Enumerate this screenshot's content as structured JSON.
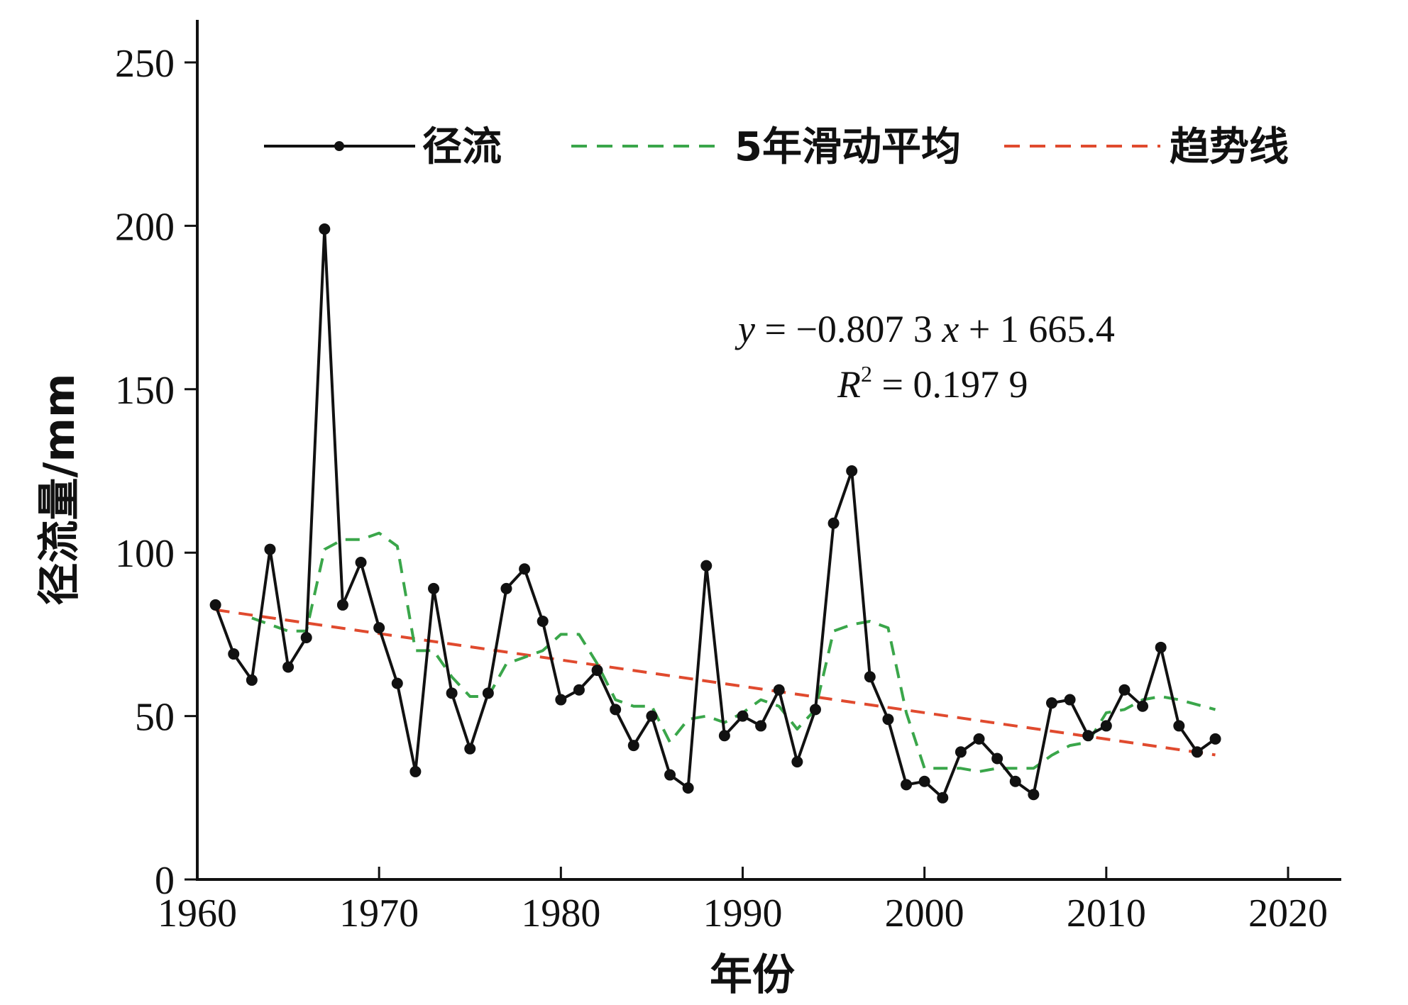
{
  "chart_data": {
    "type": "line",
    "title": "",
    "xlabel": "年份",
    "ylabel": "径流量/mm",
    "xlim": [
      1960,
      2020
    ],
    "ylim": [
      0,
      250
    ],
    "xticks": [
      1960,
      1970,
      1980,
      1990,
      2000,
      2010,
      2020
    ],
    "yticks": [
      0,
      50,
      100,
      150,
      200,
      250
    ],
    "grid": false,
    "legend_position": "top",
    "series": [
      {
        "name": "径流",
        "style": "solid-with-markers",
        "color": "#111111",
        "x": [
          1961,
          1962,
          1963,
          1964,
          1965,
          1966,
          1967,
          1968,
          1969,
          1970,
          1971,
          1972,
          1973,
          1974,
          1975,
          1976,
          1977,
          1978,
          1979,
          1980,
          1981,
          1982,
          1983,
          1984,
          1985,
          1986,
          1987,
          1988,
          1989,
          1990,
          1991,
          1992,
          1993,
          1994,
          1995,
          1996,
          1997,
          1998,
          1999,
          2000,
          2001,
          2002,
          2003,
          2004,
          2005,
          2006,
          2007,
          2008,
          2009,
          2010,
          2011,
          2012,
          2013,
          2014,
          2015,
          2016
        ],
        "y": [
          84,
          69,
          61,
          101,
          65,
          74,
          199,
          84,
          97,
          77,
          60,
          33,
          89,
          57,
          40,
          57,
          89,
          95,
          79,
          55,
          58,
          64,
          52,
          41,
          50,
          32,
          28,
          96,
          44,
          50,
          47,
          58,
          36,
          52,
          109,
          125,
          62,
          49,
          29,
          30,
          25,
          39,
          43,
          37,
          30,
          26,
          54,
          55,
          44,
          47,
          58,
          53,
          71,
          47,
          39,
          43
        ]
      },
      {
        "name": "5年滑动平均",
        "style": "dashed",
        "color": "#3aa64a",
        "x": [
          1963,
          1964,
          1965,
          1966,
          1967,
          1968,
          1969,
          1970,
          1971,
          1972,
          1973,
          1974,
          1975,
          1976,
          1977,
          1978,
          1979,
          1980,
          1981,
          1982,
          1983,
          1984,
          1985,
          1986,
          1987,
          1988,
          1989,
          1990,
          1991,
          1992,
          1993,
          1994,
          1995,
          1996,
          1997,
          1998,
          1999,
          2000,
          2001,
          2002,
          2003,
          2004,
          2005,
          2006,
          2007,
          2008,
          2009,
          2010,
          2011,
          2012,
          2013,
          2014,
          2016
        ],
        "y": [
          80,
          78,
          76,
          76,
          101,
          104,
          104,
          106,
          102,
          70,
          70,
          62,
          56,
          56,
          66,
          68,
          70,
          75,
          75,
          66,
          55,
          53,
          53,
          42,
          49,
          50,
          48,
          51,
          55,
          53,
          46,
          52,
          76,
          78,
          79,
          77,
          51,
          34,
          34,
          34,
          33,
          34,
          34,
          34,
          38,
          41,
          42,
          51,
          52,
          55,
          56,
          55,
          52
        ]
      },
      {
        "name": "趋势线",
        "style": "dashed",
        "color": "#e04a2e",
        "x": [
          1961,
          2016
        ],
        "y": [
          82.5,
          38.1
        ]
      }
    ],
    "annotations": {
      "equation": {
        "y_var": "y",
        "rest": " = −0.807 3 ",
        "x_var": "x",
        "tail": " + 1 665.4"
      },
      "r2": {
        "r_var": "R",
        "sup": "2",
        "tail": " = 0.197 9"
      }
    }
  }
}
